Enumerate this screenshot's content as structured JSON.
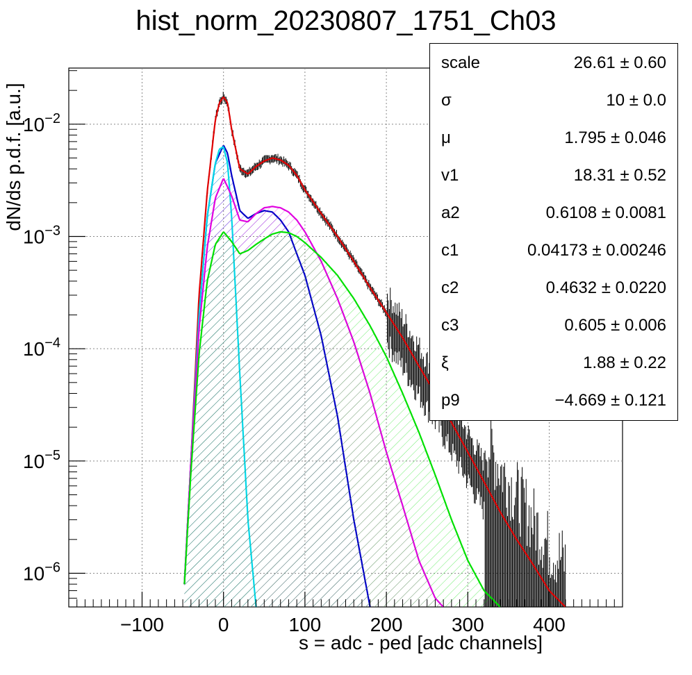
{
  "chart_data": {
    "type": "line",
    "title": "hist_norm_20230807_1751_Ch03",
    "xlabel": "s = adc - ped [adc channels]",
    "ylabel": "dN/ds p.d.f. [a.u.]",
    "xlim": [
      -190,
      490
    ],
    "ylim_log10": [
      -6.3,
      -1.5
    ],
    "yscale": "log",
    "grid": true,
    "x_ticks": [
      -100,
      0,
      100,
      200,
      300,
      400
    ],
    "x_tick_labels": [
      "−100",
      "0",
      "100",
      "200",
      "300",
      "400"
    ],
    "y_ticks_exponents": [
      -6,
      -5,
      -4,
      -3,
      -2
    ],
    "y_tick_mantissa": "10",
    "series": [
      {
        "color": "#e00000",
        "x": [
          -48,
          -40,
          -30,
          -20,
          -10,
          -5,
          0,
          5,
          10,
          20,
          30,
          40,
          50,
          60,
          70,
          80,
          90,
          100,
          120,
          140,
          160,
          180,
          200,
          220,
          240,
          260,
          280,
          300,
          320,
          340,
          360,
          380,
          400,
          420
        ],
        "y": [
          8e-07,
          1e-05,
          0.0003,
          0.0025,
          0.011,
          0.0155,
          0.0175,
          0.0155,
          0.009,
          0.004,
          0.0036,
          0.0042,
          0.0047,
          0.005,
          0.0048,
          0.0043,
          0.0035,
          0.0026,
          0.0016,
          0.001,
          0.0006,
          0.00035,
          0.00021,
          0.000125,
          7e-05,
          4e-05,
          2.2e-05,
          1.2e-05,
          6.5e-06,
          3.5e-06,
          2e-06,
          1.2e-06,
          7e-07,
          5e-07
        ]
      },
      {
        "color": "#0000c8",
        "x": [
          -48,
          -40,
          -30,
          -20,
          -10,
          0,
          5,
          10,
          20,
          30,
          40,
          50,
          60,
          70,
          80,
          90,
          100,
          120,
          140,
          160,
          180
        ],
        "y": [
          8e-07,
          1e-05,
          0.0002,
          0.0015,
          0.0045,
          0.0065,
          0.0055,
          0.0035,
          0.0017,
          0.00145,
          0.0016,
          0.0017,
          0.00165,
          0.0014,
          0.0011,
          0.0007,
          0.00045,
          0.00013,
          2.5e-05,
          3e-06,
          5e-07
        ]
      },
      {
        "color": "#00d8e8",
        "x": [
          -48,
          -40,
          -30,
          -20,
          -10,
          -5,
          0,
          5,
          10,
          20,
          30,
          40
        ],
        "y": [
          8e-07,
          1e-05,
          0.0002,
          0.0015,
          0.0045,
          0.006,
          0.0063,
          0.0045,
          0.0015,
          6e-05,
          3e-06,
          5e-07
        ]
      },
      {
        "color": "#e000e0",
        "x": [
          -48,
          -40,
          -30,
          -20,
          -10,
          0,
          10,
          20,
          30,
          40,
          50,
          60,
          70,
          80,
          90,
          100,
          120,
          140,
          160,
          180,
          200,
          220,
          240,
          260,
          270
        ],
        "y": [
          8e-07,
          1e-05,
          0.00015,
          0.0008,
          0.0022,
          0.0033,
          0.0023,
          0.0014,
          0.00135,
          0.0016,
          0.0018,
          0.00185,
          0.0018,
          0.00165,
          0.0014,
          0.0011,
          0.0006,
          0.00028,
          0.000115,
          4e-05,
          1.2e-05,
          4e-06,
          1.3e-06,
          6e-07,
          5e-07
        ]
      },
      {
        "color": "#00e000",
        "x": [
          -48,
          -40,
          -30,
          -20,
          -10,
          0,
          10,
          20,
          30,
          40,
          50,
          60,
          70,
          80,
          90,
          100,
          120,
          140,
          160,
          180,
          200,
          220,
          240,
          260,
          280,
          300,
          320,
          340
        ],
        "y": [
          8e-07,
          8e-06,
          9e-05,
          0.0004,
          0.00085,
          0.0011,
          0.0009,
          0.0007,
          0.00075,
          0.00085,
          0.00095,
          0.00105,
          0.0011,
          0.00108,
          0.001,
          0.00088,
          0.00065,
          0.00045,
          0.00028,
          0.00016,
          8.5e-05,
          4e-05,
          1.8e-05,
          7.5e-06,
          3e-06,
          1.3e-06,
          7e-07,
          5e-07
        ]
      }
    ]
  },
  "stats": {
    "rows": [
      {
        "name": "scale",
        "value": "26.61 ± 0.60"
      },
      {
        "name": "σ",
        "value": "10 ± 0.0"
      },
      {
        "name": "μ",
        "value": "1.795 ± 0.046"
      },
      {
        "name": "v1",
        "value": "18.31 ± 0.52"
      },
      {
        "name": "a2",
        "value": "0.6108 ± 0.0081"
      },
      {
        "name": "c1",
        "value": "0.04173 ± 0.00246"
      },
      {
        "name": "c2",
        "value": "0.4632 ± 0.0220"
      },
      {
        "name": "c3",
        "value": "0.605 ± 0.006"
      },
      {
        "name": "ξ",
        "value": "1.88 ± 0.22"
      },
      {
        "name": "p9",
        "value": "−4.669 ± 0.121"
      }
    ]
  }
}
